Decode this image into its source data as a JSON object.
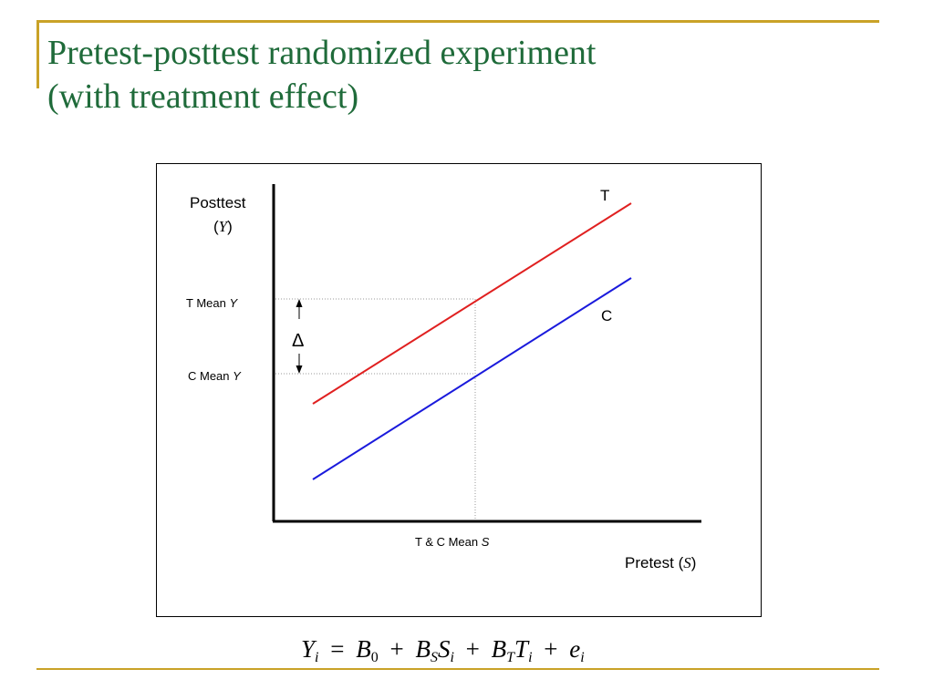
{
  "colors": {
    "accent_rule": "#c9a227",
    "title": "#1f6b3a",
    "treatment_line": "#e02020",
    "control_line": "#1a1adc",
    "axis": "#000000",
    "guide": "#999999"
  },
  "slide": {
    "title_line1": "Pretest-posttest randomized experiment",
    "title_line2": "(with treatment effect)"
  },
  "diagram": {
    "y_axis_label": "Posttest",
    "y_axis_var": "Y",
    "x_axis_label": "Pretest",
    "x_axis_var": "S",
    "t_mean_label": "T Mean",
    "c_mean_label": "C Mean",
    "mean_var": "Y",
    "x_mean_label": "T & C Mean",
    "x_mean_var": "S",
    "delta_symbol": "Δ",
    "treatment_label": "T",
    "control_label": "C"
  },
  "equation": {
    "lhs": "Y",
    "lhs_sub": "i",
    "equals": "=",
    "plus": "+",
    "b0": "B",
    "b0_sub": "0",
    "bs": "B",
    "bs_sub": "S",
    "s": "S",
    "s_sub": "i",
    "bt": "B",
    "bt_sub": "T",
    "t": "T",
    "t_sub": "i",
    "e": "e",
    "e_sub": "i"
  }
}
